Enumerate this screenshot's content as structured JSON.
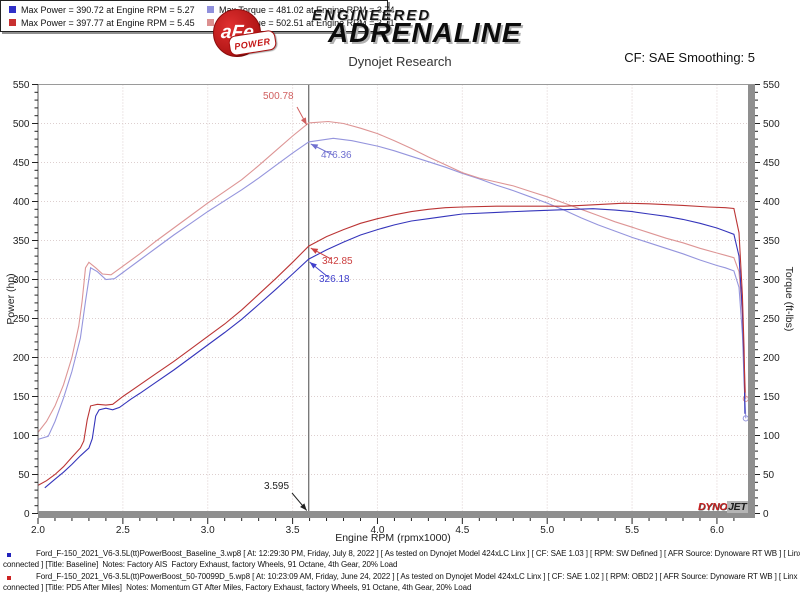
{
  "header": {
    "brand": {
      "circle_text": "aFe",
      "power_text": "POWER",
      "top_line": "ENGINEERED",
      "bottom_line": "ADRENALINE"
    },
    "title": "Dynojet Research",
    "correction": "CF: SAE Smoothing: 5"
  },
  "chart_data": {
    "type": "line",
    "xlabel": "Engine RPM (rpmx1000)",
    "ylabel_left": "Power (hp)",
    "ylabel_right": "Torque (ft-lbs)",
    "xlim": [
      2.0,
      6.183
    ],
    "ylim": [
      0,
      550
    ],
    "x_major_step": 0.5,
    "x_minor_step": 0.1,
    "y_major_step": 50,
    "y_minor_step": 10,
    "grid": "dotted-major",
    "cursor_rpm": 3.595,
    "series": [
      {
        "name": "baseline-torque",
        "color": "#9595dd",
        "axis": "torque",
        "end_marker": true,
        "points": [
          [
            2.0,
            95
          ],
          [
            2.06,
            99
          ],
          [
            2.1,
            118
          ],
          [
            2.15,
            148
          ],
          [
            2.2,
            182
          ],
          [
            2.25,
            225
          ],
          [
            2.28,
            272
          ],
          [
            2.31,
            315
          ],
          [
            2.35,
            310
          ],
          [
            2.4,
            300
          ],
          [
            2.45,
            301
          ],
          [
            2.5,
            309
          ],
          [
            2.6,
            325
          ],
          [
            2.7,
            341
          ],
          [
            2.8,
            357
          ],
          [
            2.9,
            372
          ],
          [
            3.0,
            387
          ],
          [
            3.1,
            401
          ],
          [
            3.2,
            415
          ],
          [
            3.3,
            430
          ],
          [
            3.4,
            446
          ],
          [
            3.5,
            462
          ],
          [
            3.595,
            476.36
          ],
          [
            3.74,
            481.02
          ],
          [
            3.85,
            478
          ],
          [
            4.0,
            471
          ],
          [
            4.1,
            465
          ],
          [
            4.2,
            458
          ],
          [
            4.3,
            451
          ],
          [
            4.4,
            444
          ],
          [
            4.5,
            436
          ],
          [
            4.6,
            429
          ],
          [
            4.7,
            421
          ],
          [
            4.8,
            414
          ],
          [
            4.9,
            406
          ],
          [
            5.0,
            398
          ],
          [
            5.1,
            389
          ],
          [
            5.2,
            379
          ],
          [
            5.3,
            370
          ],
          [
            5.4,
            362
          ],
          [
            5.5,
            354
          ],
          [
            5.6,
            347
          ],
          [
            5.7,
            340
          ],
          [
            5.8,
            333
          ],
          [
            5.9,
            325
          ],
          [
            6.0,
            318
          ],
          [
            6.05,
            315
          ],
          [
            6.1,
            311
          ],
          [
            6.13,
            290
          ],
          [
            6.15,
            230
          ],
          [
            6.16,
            170
          ],
          [
            6.17,
            122
          ]
        ]
      },
      {
        "name": "pd5-torque",
        "color": "#dd9595",
        "axis": "torque",
        "end_marker": true,
        "points": [
          [
            2.0,
            104
          ],
          [
            2.05,
            118
          ],
          [
            2.1,
            138
          ],
          [
            2.15,
            165
          ],
          [
            2.2,
            200
          ],
          [
            2.24,
            240
          ],
          [
            2.26,
            272
          ],
          [
            2.28,
            315
          ],
          [
            2.3,
            322
          ],
          [
            2.34,
            315
          ],
          [
            2.38,
            307
          ],
          [
            2.43,
            306
          ],
          [
            2.5,
            317
          ],
          [
            2.6,
            333
          ],
          [
            2.7,
            350
          ],
          [
            2.8,
            366
          ],
          [
            2.9,
            382
          ],
          [
            3.0,
            398
          ],
          [
            3.1,
            413
          ],
          [
            3.2,
            428
          ],
          [
            3.3,
            446
          ],
          [
            3.4,
            465
          ],
          [
            3.5,
            484
          ],
          [
            3.595,
            500.78
          ],
          [
            3.71,
            502.51
          ],
          [
            3.8,
            500
          ],
          [
            3.9,
            494
          ],
          [
            4.0,
            487
          ],
          [
            4.1,
            478
          ],
          [
            4.2,
            468
          ],
          [
            4.3,
            457
          ],
          [
            4.4,
            447
          ],
          [
            4.5,
            437
          ],
          [
            4.6,
            430
          ],
          [
            4.7,
            425
          ],
          [
            4.8,
            420
          ],
          [
            4.9,
            413
          ],
          [
            5.0,
            406
          ],
          [
            5.1,
            398
          ],
          [
            5.2,
            390
          ],
          [
            5.3,
            382
          ],
          [
            5.4,
            374
          ],
          [
            5.5,
            367
          ],
          [
            5.6,
            360
          ],
          [
            5.7,
            353
          ],
          [
            5.8,
            347
          ],
          [
            5.9,
            340
          ],
          [
            6.0,
            334
          ],
          [
            6.05,
            331
          ],
          [
            6.1,
            328
          ],
          [
            6.13,
            310
          ],
          [
            6.15,
            255
          ],
          [
            6.16,
            195
          ],
          [
            6.17,
            147
          ]
        ]
      },
      {
        "name": "baseline-power",
        "color": "#3535bb",
        "axis": "power",
        "end_marker": false,
        "points": [
          [
            2.04,
            33
          ],
          [
            2.1,
            44
          ],
          [
            2.15,
            53
          ],
          [
            2.2,
            63
          ],
          [
            2.25,
            74
          ],
          [
            2.3,
            84
          ],
          [
            2.32,
            96
          ],
          [
            2.34,
            125
          ],
          [
            2.36,
            133
          ],
          [
            2.4,
            135
          ],
          [
            2.44,
            133
          ],
          [
            2.48,
            136
          ],
          [
            2.55,
            147
          ],
          [
            2.6,
            154
          ],
          [
            2.7,
            169
          ],
          [
            2.8,
            184
          ],
          [
            2.9,
            200
          ],
          [
            3.0,
            216
          ],
          [
            3.1,
            232
          ],
          [
            3.2,
            249
          ],
          [
            3.3,
            268
          ],
          [
            3.4,
            287
          ],
          [
            3.5,
            307
          ],
          [
            3.595,
            326.18
          ],
          [
            3.7,
            338
          ],
          [
            3.8,
            348
          ],
          [
            3.9,
            357
          ],
          [
            4.0,
            364
          ],
          [
            4.1,
            370
          ],
          [
            4.2,
            375
          ],
          [
            4.3,
            378
          ],
          [
            4.4,
            381
          ],
          [
            4.5,
            384
          ],
          [
            4.7,
            386
          ],
          [
            4.9,
            388
          ],
          [
            5.1,
            389.5
          ],
          [
            5.27,
            390.72
          ],
          [
            5.4,
            389
          ],
          [
            5.5,
            387
          ],
          [
            5.6,
            384
          ],
          [
            5.7,
            381
          ],
          [
            5.8,
            377
          ],
          [
            5.9,
            372
          ],
          [
            6.0,
            366
          ],
          [
            6.05,
            362
          ],
          [
            6.1,
            358
          ],
          [
            6.13,
            330
          ],
          [
            6.15,
            260
          ],
          [
            6.16,
            190
          ],
          [
            6.165,
            128
          ]
        ]
      },
      {
        "name": "pd5-power",
        "color": "#bb3535",
        "axis": "power",
        "end_marker": false,
        "points": [
          [
            2.0,
            36
          ],
          [
            2.05,
            42
          ],
          [
            2.1,
            50
          ],
          [
            2.15,
            60
          ],
          [
            2.2,
            72
          ],
          [
            2.25,
            84
          ],
          [
            2.27,
            93
          ],
          [
            2.29,
            120
          ],
          [
            2.31,
            138
          ],
          [
            2.35,
            140
          ],
          [
            2.4,
            139
          ],
          [
            2.44,
            140
          ],
          [
            2.5,
            150
          ],
          [
            2.6,
            165
          ],
          [
            2.7,
            180
          ],
          [
            2.8,
            195
          ],
          [
            2.9,
            211
          ],
          [
            3.0,
            227
          ],
          [
            3.1,
            243
          ],
          [
            3.2,
            261
          ],
          [
            3.3,
            281
          ],
          [
            3.4,
            301
          ],
          [
            3.5,
            322
          ],
          [
            3.595,
            342.85
          ],
          [
            3.7,
            355
          ],
          [
            3.8,
            364
          ],
          [
            3.9,
            372
          ],
          [
            4.0,
            378
          ],
          [
            4.1,
            383
          ],
          [
            4.2,
            387
          ],
          [
            4.3,
            390
          ],
          [
            4.4,
            392
          ],
          [
            4.5,
            393
          ],
          [
            4.7,
            394
          ],
          [
            4.9,
            394
          ],
          [
            5.1,
            394
          ],
          [
            5.2,
            395
          ],
          [
            5.3,
            396
          ],
          [
            5.45,
            397.77
          ],
          [
            5.6,
            397
          ],
          [
            5.8,
            395
          ],
          [
            5.95,
            393
          ],
          [
            6.05,
            392
          ],
          [
            6.1,
            391
          ],
          [
            6.13,
            360
          ],
          [
            6.15,
            280
          ],
          [
            6.16,
            210
          ],
          [
            6.165,
            155
          ]
        ]
      }
    ],
    "annotations": [
      {
        "id": "torque-pd5-readout",
        "text": "500.78",
        "value": 500.78,
        "color": "#d06060"
      },
      {
        "id": "torque-baseline-readout",
        "text": "476.36",
        "value": 476.36,
        "color": "#7070d0"
      },
      {
        "id": "power-pd5-readout",
        "text": "342.85",
        "value": 342.85,
        "color": "#cc4040"
      },
      {
        "id": "power-baseline-readout",
        "text": "326.18",
        "value": 326.18,
        "color": "#4040cc"
      },
      {
        "id": "cursor-rpm-readout",
        "text": "3.595",
        "value": 3.595,
        "color": "#222222"
      }
    ]
  },
  "legend": {
    "rows": [
      [
        {
          "color": "#3030c8",
          "text": "Max Power = 390.72 at Engine RPM = 5.27"
        },
        {
          "color": "#9090dc",
          "text": "Max Torque = 481.02 at Engine RPM = 3.74"
        }
      ],
      [
        {
          "color": "#c83030",
          "text": "Max Power = 397.77 at Engine RPM = 5.45"
        },
        {
          "color": "#dc9090",
          "text": "Max Torque = 502.51 at Engine RPM = 3.71"
        }
      ]
    ]
  },
  "watermark": {
    "dyno": "DYNO",
    "jet": "JET"
  },
  "footer": {
    "runs": [
      {
        "bullet_color": "#2222bb",
        "line1": "Ford_F-150_2021_V6-3.5L(tt)PowerBoost_Baseline_3.wp8 [ At: 12:29:30 PM, Friday, July 8, 2022 ] [ As tested on Dynojet Model 424xLC Linx ] [ CF: SAE 1.03 ] [ RPM: SW Defined ] [ AFR Source: Dynoware RT WB ] [ Linx not",
        "line2": "connected ] [Title: Baseline]  Notes: Factory AIS  Factory Exhaust, factory Wheels, 91 Octane, 4th Gear, 20% Load"
      },
      {
        "bullet_color": "#cc2222",
        "line1": "Ford_F-150_2021_V6-3.5L(tt)PowerBoost_50-70099D_5.wp8 [ At: 10:23:09 AM, Friday, June 24, 2022 ] [ As tested on Dynojet Model 424xLC Linx ] [ CF: SAE 1.02 ] [ RPM: OBD2 ] [ AFR Source: Dynoware RT WB ] [ Linx not",
        "line2": "connected ] [Title: PD5 After Miles]  Notes: Momentum GT After Miles, Factory Exhaust, factory Wheels, 91 Octane, 4th Gear, 20% Load"
      }
    ]
  }
}
